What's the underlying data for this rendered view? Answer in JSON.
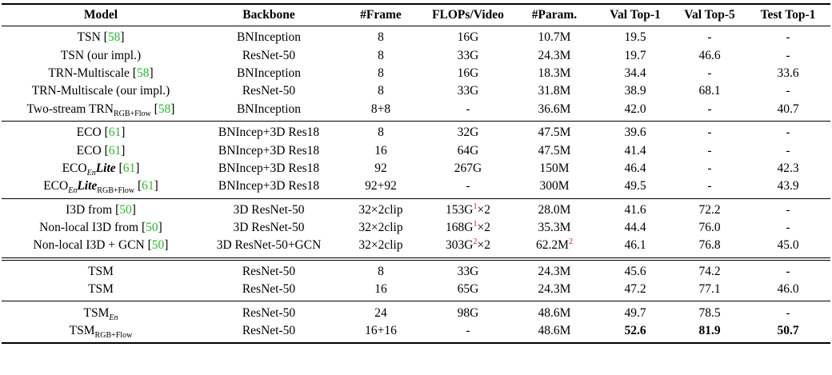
{
  "table": {
    "header": [
      "Model",
      "Backbone",
      "#Frame",
      "FLOPs/Video",
      "#Param.",
      "Val Top-1",
      "Val Top-5",
      "Test Top-1"
    ],
    "groups": [
      [
        [
          [
            "TSN [",
            {
              "cite": "58"
            },
            "]"
          ],
          "BNInception",
          "8",
          "16G",
          "10.7M",
          "19.5",
          "-",
          "-"
        ],
        [
          "TSN (our impl.)",
          "ResNet-50",
          "8",
          "33G",
          "24.3M",
          "19.7",
          "46.6",
          "-"
        ],
        [
          [
            "TRN-Multiscale [",
            {
              "cite": "58"
            },
            "]"
          ],
          "BNInception",
          "8",
          "16G",
          "18.3M",
          "34.4",
          "-",
          "33.6"
        ],
        [
          "TRN-Multiscale (our impl.)",
          "ResNet-50",
          "8",
          "33G",
          "31.8M",
          "38.9",
          "68.1",
          "-"
        ],
        [
          [
            "Two-stream TRN",
            {
              "sub": "RGB+Flow"
            },
            " [",
            {
              "cite": "58"
            },
            "]"
          ],
          "BNInception",
          "8+8",
          "-",
          "36.6M",
          "42.0",
          "-",
          "40.7"
        ]
      ],
      [
        [
          [
            "ECO [",
            {
              "cite": "61"
            },
            "]"
          ],
          "BNIncep+3D Res18",
          "8",
          "32G",
          "47.5M",
          "39.6",
          "-",
          "-"
        ],
        [
          [
            "ECO [",
            {
              "cite": "61"
            },
            "]"
          ],
          "BNIncep+3D Res18",
          "16",
          "64G",
          "47.5M",
          "41.4",
          "-",
          "-"
        ],
        [
          [
            "ECO",
            {
              "sub_i": "En"
            },
            {
              "bi": "Lite"
            },
            " [",
            {
              "cite": "61"
            },
            "]"
          ],
          "BNIncep+3D Res18",
          "92",
          "267G",
          "150M",
          "46.4",
          "-",
          "42.3"
        ],
        [
          [
            "ECO",
            {
              "sub_i": "En"
            },
            {
              "bi": "Lite"
            },
            {
              "sub": "RGB+Flow"
            },
            " [",
            {
              "cite": "61"
            },
            "]"
          ],
          "BNIncep+3D Res18",
          "92+92",
          "-",
          "300M",
          "49.5",
          "-",
          "43.9"
        ]
      ],
      [
        [
          [
            "I3D from [",
            {
              "cite": "50"
            },
            "]"
          ],
          "3D ResNet-50",
          "32×2clip",
          [
            "153G",
            {
              "sup": "1"
            },
            "×2"
          ],
          "28.0M",
          "41.6",
          "72.2",
          "-"
        ],
        [
          [
            "Non-local I3D from [",
            {
              "cite": "50"
            },
            "]"
          ],
          "3D ResNet-50",
          "32×2clip",
          [
            "168G",
            {
              "sup": "1"
            },
            "×2"
          ],
          "35.3M",
          "44.4",
          "76.0",
          "-"
        ],
        [
          [
            "Non-local I3D + GCN [",
            {
              "cite": "50"
            },
            "]"
          ],
          "3D ResNet-50+GCN",
          "32×2clip",
          [
            "303G",
            {
              "sup": "2"
            },
            "×2"
          ],
          [
            "62.2M",
            {
              "sup": "2"
            }
          ],
          "46.1",
          "76.8",
          "45.0"
        ]
      ],
      [
        [
          "TSM",
          "ResNet-50",
          "8",
          "33G",
          "24.3M",
          "45.6",
          "74.2",
          "-"
        ],
        [
          "TSM",
          "ResNet-50",
          "16",
          "65G",
          "24.3M",
          "47.2",
          "77.1",
          "46.0"
        ]
      ],
      [
        [
          [
            "TSM",
            {
              "sub_i": "En"
            }
          ],
          "ResNet-50",
          "24",
          "98G",
          "48.6M",
          "49.7",
          "78.5",
          "-"
        ],
        [
          [
            "TSM",
            {
              "sub": "RGB+Flow"
            }
          ],
          "ResNet-50",
          "16+16",
          "-",
          "48.6M",
          [
            {
              "b": "52.6"
            }
          ],
          [
            {
              "b": "81.9"
            }
          ],
          [
            {
              "b": "50.7"
            }
          ]
        ]
      ]
    ]
  }
}
